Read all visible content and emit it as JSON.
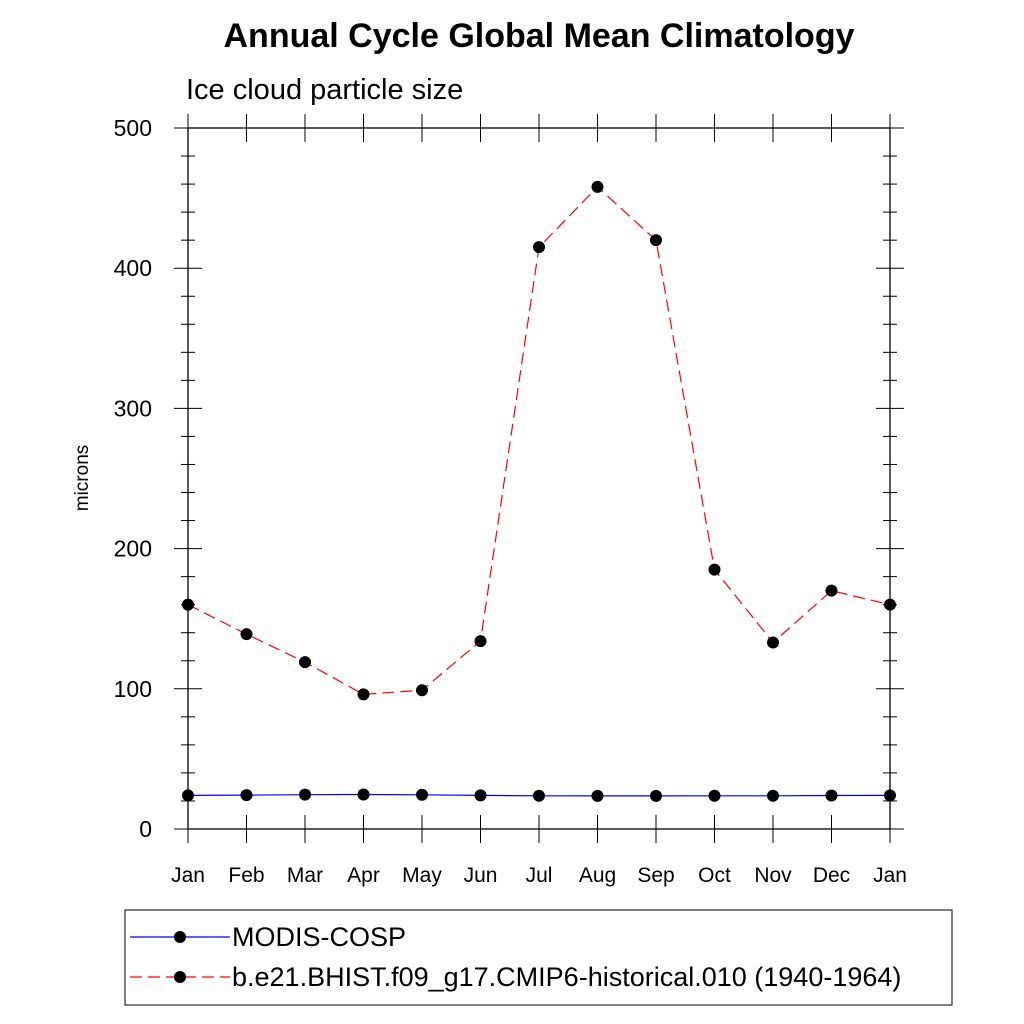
{
  "chart_data": {
    "type": "line",
    "title": "Annual Cycle Global Mean Climatology",
    "subtitle": "Ice cloud particle size",
    "xlabel": "",
    "ylabel": "microns",
    "categories": [
      "Jan",
      "Feb",
      "Mar",
      "Apr",
      "May",
      "Jun",
      "Jul",
      "Aug",
      "Sep",
      "Oct",
      "Nov",
      "Dec",
      "Jan"
    ],
    "yticks": [
      0,
      100,
      200,
      300,
      400,
      500
    ],
    "ylim": [
      0,
      500
    ],
    "grid": false,
    "legend_position": "bottom",
    "series": [
      {
        "name": "MODIS-COSP",
        "color": "#0000ff",
        "line_style": "solid",
        "marker": "filled-circle",
        "values": [
          24,
          24.2,
          24.5,
          24.6,
          24.4,
          24,
          23.7,
          23.6,
          23.6,
          23.7,
          23.7,
          23.9,
          24
        ]
      },
      {
        "name": "b.e21.BHIST.f09_g17.CMIP6-historical.010 (1940-1964)",
        "color": "#ff0000",
        "line_style": "dashed",
        "marker": "filled-circle",
        "values": [
          160,
          139,
          119,
          96,
          99,
          134,
          415,
          458,
          420,
          185,
          133,
          170,
          160
        ]
      }
    ]
  }
}
